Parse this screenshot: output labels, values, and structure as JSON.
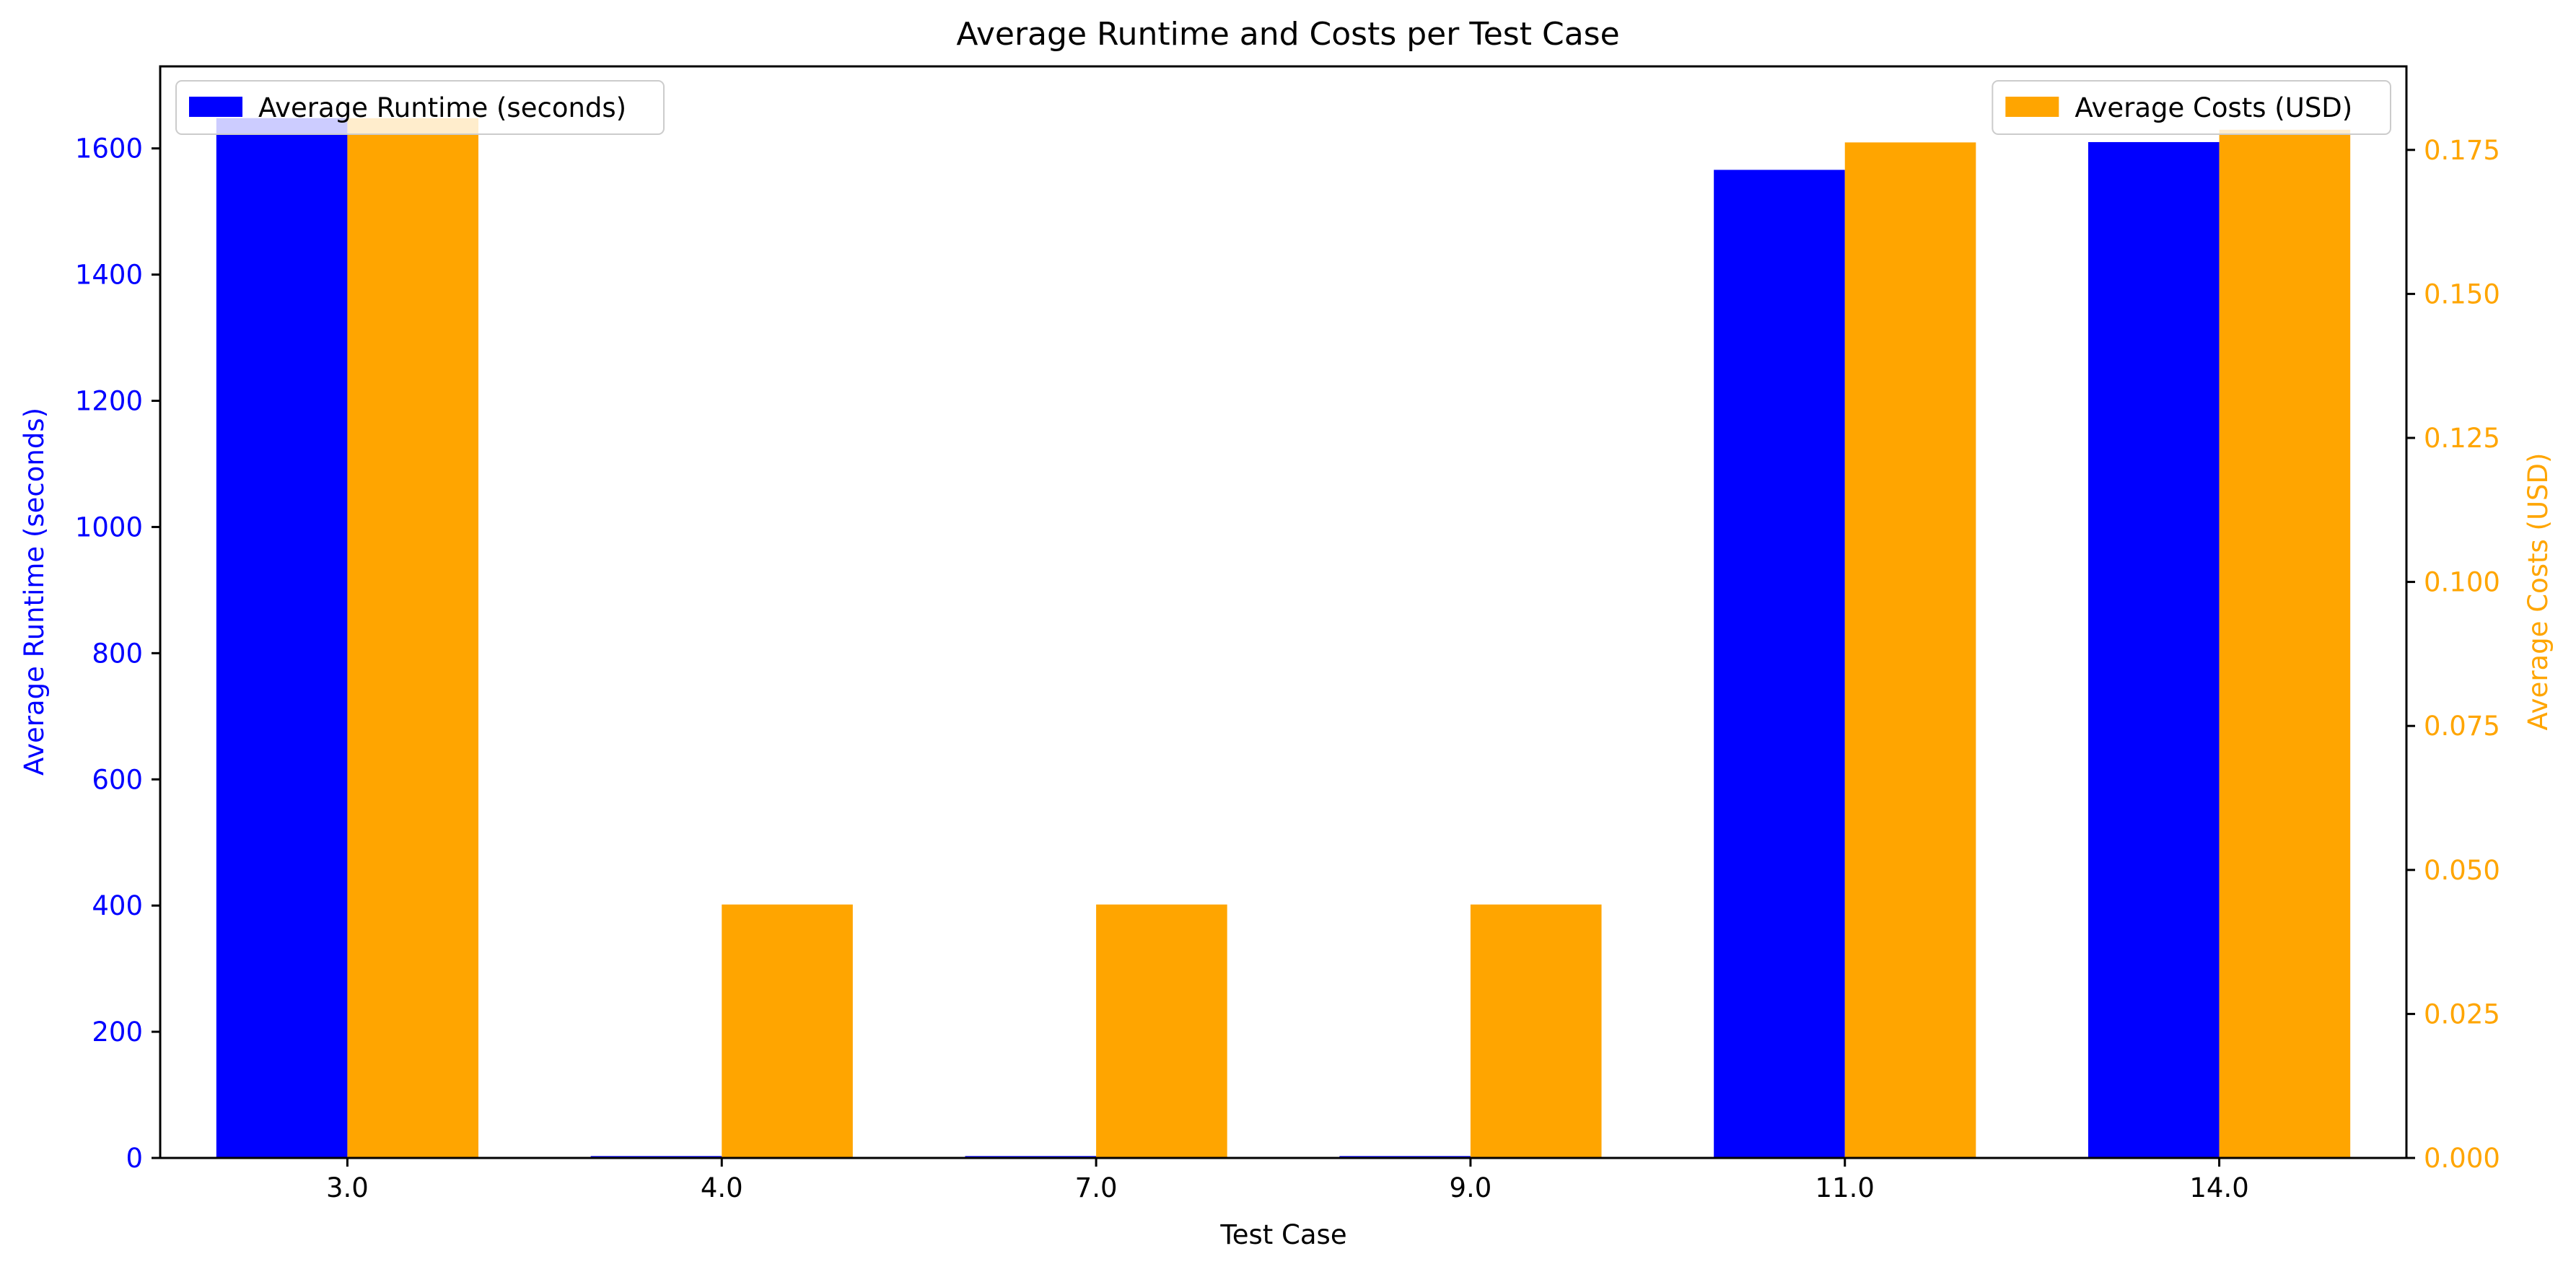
{
  "chart_data": {
    "type": "bar",
    "title": "Average Runtime and Costs per Test Case",
    "xlabel": "Test Case",
    "categories": [
      "3.0",
      "4.0",
      "7.0",
      "9.0",
      "11.0",
      "14.0"
    ],
    "series": [
      {
        "name": "Average Runtime (seconds)",
        "axis": "left",
        "color": "#0000ff",
        "values": [
          1648,
          3,
          3,
          3,
          1566,
          1610
        ]
      },
      {
        "name": "Average Costs (USD)",
        "axis": "right",
        "color": "#ffa500",
        "values": [
          0.1805,
          0.044,
          0.044,
          0.044,
          0.1763,
          0.1785
        ]
      }
    ],
    "y_left": {
      "label": "Average Runtime (seconds)",
      "color": "#0000ff",
      "ylim": [
        0,
        1730
      ],
      "ticks": [
        0,
        200,
        400,
        600,
        800,
        1000,
        1200,
        1400,
        1600
      ],
      "tick_labels": [
        "0",
        "200",
        "400",
        "600",
        "800",
        "1000",
        "1200",
        "1400",
        "1600"
      ]
    },
    "y_right": {
      "label": "Average Costs (USD)",
      "color": "#ffa500",
      "ylim": [
        0,
        0.1895
      ],
      "ticks": [
        0,
        0.025,
        0.05,
        0.075,
        0.1,
        0.125,
        0.15,
        0.175
      ],
      "tick_labels": [
        "0.000",
        "0.025",
        "0.050",
        "0.075",
        "0.100",
        "0.125",
        "0.150",
        "0.175"
      ]
    },
    "legends": [
      {
        "placement": "upper-left",
        "series": 0
      },
      {
        "placement": "upper-right",
        "series": 1
      }
    ],
    "grid": false
  }
}
